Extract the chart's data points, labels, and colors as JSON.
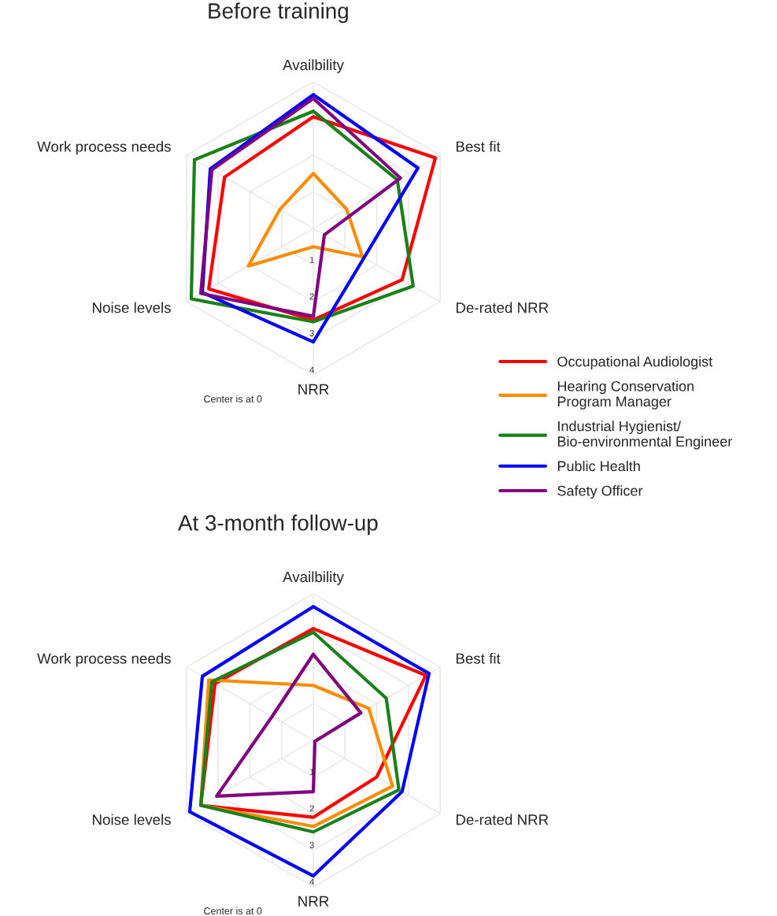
{
  "chart_data": [
    {
      "type": "radar",
      "title": "Before training",
      "categories": [
        "Availbility",
        "Best fit",
        "De-rated NRR",
        "NRR",
        "Noise levels",
        "Work process needs"
      ],
      "ylim": [
        0,
        4
      ],
      "yticks": [
        1,
        2,
        3,
        4
      ],
      "grid": true,
      "legend": "right",
      "annotations": [
        "Center is at 0"
      ],
      "series": [
        {
          "name": "Occupational Audiologist",
          "color": "#ff0000",
          "values": [
            3.05,
            3.85,
            2.8,
            2.5,
            3.3,
            2.8
          ]
        },
        {
          "name": "Hearing Conservation\nProgram Manager",
          "color": "#ff8c00",
          "values": [
            1.5,
            1.05,
            1.55,
            0.5,
            2.05,
            1.05
          ]
        },
        {
          "name": "Industrial Hygienist/\nBio-environmental Engineer",
          "color": "#1a801a",
          "values": [
            3.2,
            2.65,
            3.15,
            2.55,
            3.85,
            3.75
          ]
        },
        {
          "name": "Public Health",
          "color": "#0000ff",
          "values": [
            3.65,
            3.3,
            1.6,
            3.1,
            3.5,
            3.25
          ]
        },
        {
          "name": "Safety Officer",
          "color": "#800080",
          "values": [
            3.55,
            2.75,
            0.35,
            2.4,
            3.55,
            3.2
          ]
        }
      ]
    },
    {
      "type": "radar",
      "title": "At 3-month follow-up",
      "categories": [
        "Availbility",
        "Best fit",
        "De-rated NRR",
        "NRR",
        "Noise levels",
        "Work process needs"
      ],
      "ylim": [
        0,
        4
      ],
      "yticks": [
        1,
        2,
        3,
        4
      ],
      "grid": true,
      "annotations": [
        "Center is at 0"
      ],
      "series": [
        {
          "color": "#ff0000",
          "values": [
            3.05,
            3.55,
            2.0,
            2.1,
            3.55,
            3.1
          ]
        },
        {
          "color": "#ff8c00",
          "values": [
            1.5,
            1.75,
            2.5,
            2.35,
            3.55,
            3.3
          ]
        },
        {
          "color": "#1a801a",
          "values": [
            2.95,
            2.3,
            2.7,
            2.5,
            3.55,
            3.2
          ]
        },
        {
          "color": "#0000ff",
          "values": [
            3.65,
            3.65,
            2.8,
            3.7,
            3.9,
            3.5
          ]
        },
        {
          "color": "#800080",
          "values": [
            2.35,
            1.5,
            0.05,
            1.4,
            3.05,
            1.3
          ]
        }
      ]
    }
  ]
}
